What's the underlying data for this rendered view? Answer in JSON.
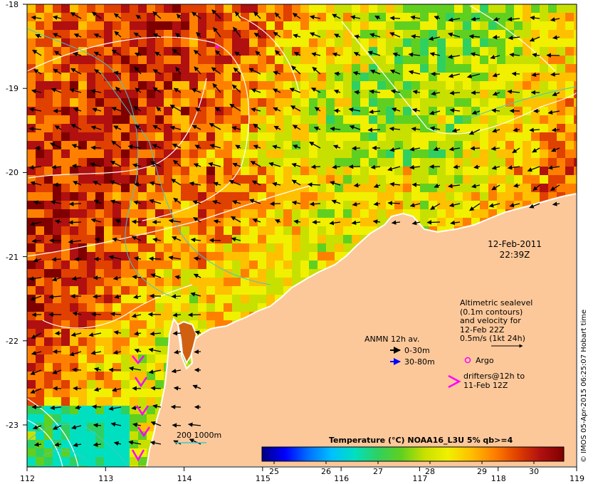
{
  "map": {
    "lon_ticks": [
      "112",
      "113",
      "114",
      "115",
      "116",
      "117",
      "118",
      "119"
    ],
    "lat_ticks": [
      "-18",
      "-19",
      "-20",
      "-21",
      "-22",
      "-23"
    ]
  },
  "timestamp": {
    "date": "12-Feb-2011",
    "time": "22:39Z"
  },
  "altimetric_note": {
    "lines": [
      "Altimetric sealevel",
      "(0.1m contours)",
      "and velocity for",
      "12-Feb 22Z",
      "0.5m/s (1kt 24h)"
    ]
  },
  "legend": {
    "anmn_title": "ANMN 12h av.",
    "anmn_shallow": "0-30m",
    "anmn_deep": "30-80m",
    "argo": "Argo",
    "drifters_line1": "drifters@12h to",
    "drifters_line2": "11-Feb 12Z",
    "bathymetry": "200  1000m"
  },
  "colorbar": {
    "title": "Temperature (°C) NOAA16_L3U 5% qb>=4",
    "ticks": [
      "25",
      "26",
      "27",
      "28",
      "29",
      "30"
    ],
    "colors": [
      "#000080",
      "#0000ff",
      "#0070ff",
      "#00c0ff",
      "#00e0c0",
      "#30d060",
      "#60d020",
      "#c8e000",
      "#f0f000",
      "#ffc000",
      "#ff8000",
      "#e04000",
      "#b01010",
      "#800000"
    ]
  },
  "credit": "© IMOS 05-Apr-2015 06:25:07 Hobart time",
  "colors": {
    "land": "#fcc89a",
    "arrow_anmn_shallow": "#000000",
    "arrow_anmn_deep": "#0000ff",
    "argo": "#ff00ff",
    "drifter": "#ff00ff",
    "contour": "#ffffff",
    "bathy": "#40c8c8"
  }
}
